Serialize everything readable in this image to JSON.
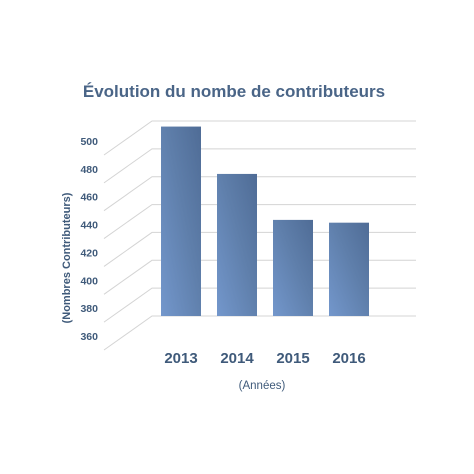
{
  "chart_data": {
    "type": "bar",
    "title": "Évolution du nombe de contributeurs",
    "xlabel": "(Années)",
    "ylabel": "(Nombres Contributeurs)",
    "categories": [
      "2013",
      "2014",
      "2015",
      "2016"
    ],
    "values": [
      496,
      462,
      429,
      427
    ],
    "ylim": [
      360,
      500
    ],
    "yticks": [
      "360",
      "380",
      "400",
      "420",
      "440",
      "460",
      "480",
      "500"
    ],
    "grid": true,
    "legend": "none",
    "bar_color": "#5f7fab"
  }
}
